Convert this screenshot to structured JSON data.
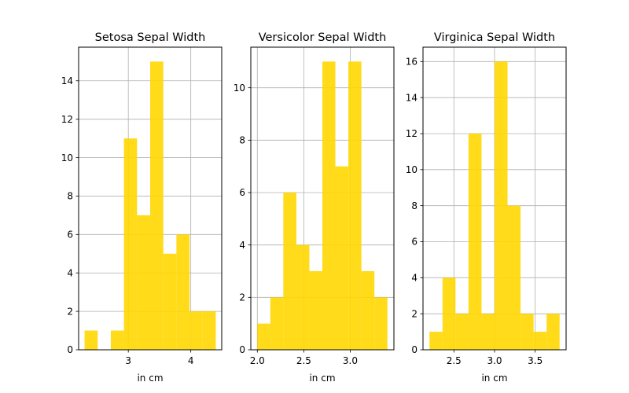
{
  "chart_data": [
    {
      "type": "bar",
      "title": "Setosa Sepal Width",
      "xlabel": "in cm",
      "ylabel": "",
      "color": "#ffd700",
      "grid": true,
      "xlim": [
        2.205,
        4.495
      ],
      "ylim": [
        0,
        15.75
      ],
      "xticks": [
        3,
        4
      ],
      "yticks": [
        0,
        2,
        4,
        6,
        8,
        10,
        12,
        14
      ],
      "bins": [
        {
          "x0": 2.3,
          "x1": 2.51,
          "value": 1
        },
        {
          "x0": 2.51,
          "x1": 2.72,
          "value": 0
        },
        {
          "x0": 2.72,
          "x1": 2.93,
          "value": 1
        },
        {
          "x0": 2.93,
          "x1": 3.14,
          "value": 11
        },
        {
          "x0": 3.14,
          "x1": 3.35,
          "value": 7
        },
        {
          "x0": 3.35,
          "x1": 3.56,
          "value": 15
        },
        {
          "x0": 3.56,
          "x1": 3.77,
          "value": 5
        },
        {
          "x0": 3.77,
          "x1": 3.98,
          "value": 6
        },
        {
          "x0": 3.98,
          "x1": 4.19,
          "value": 2
        },
        {
          "x0": 4.19,
          "x1": 4.4,
          "value": 2
        }
      ]
    },
    {
      "type": "bar",
      "title": "Versicolor Sepal Width",
      "xlabel": "in cm",
      "ylabel": "",
      "color": "#ffd700",
      "grid": true,
      "xlim": [
        1.93,
        3.47
      ],
      "ylim": [
        0,
        11.55
      ],
      "xticks": [
        2.0,
        2.5,
        3.0
      ],
      "yticks": [
        0,
        2,
        4,
        6,
        8,
        10
      ],
      "bins": [
        {
          "x0": 2.0,
          "x1": 2.14,
          "value": 1
        },
        {
          "x0": 2.14,
          "x1": 2.28,
          "value": 2
        },
        {
          "x0": 2.28,
          "x1": 2.42,
          "value": 6
        },
        {
          "x0": 2.42,
          "x1": 2.56,
          "value": 4
        },
        {
          "x0": 2.56,
          "x1": 2.7,
          "value": 3
        },
        {
          "x0": 2.7,
          "x1": 2.84,
          "value": 11
        },
        {
          "x0": 2.84,
          "x1": 2.98,
          "value": 7
        },
        {
          "x0": 2.98,
          "x1": 3.12,
          "value": 11
        },
        {
          "x0": 3.12,
          "x1": 3.26,
          "value": 3
        },
        {
          "x0": 3.26,
          "x1": 3.4,
          "value": 2
        }
      ]
    },
    {
      "type": "bar",
      "title": "Virginica Sepal Width",
      "xlabel": "in cm",
      "ylabel": "",
      "color": "#ffd700",
      "grid": true,
      "xlim": [
        2.12,
        3.88
      ],
      "ylim": [
        0,
        16.8
      ],
      "xticks": [
        2.5,
        3.0,
        3.5
      ],
      "yticks": [
        0,
        2,
        4,
        6,
        8,
        10,
        12,
        14,
        16
      ],
      "bins": [
        {
          "x0": 2.2,
          "x1": 2.36,
          "value": 1
        },
        {
          "x0": 2.36,
          "x1": 2.52,
          "value": 4
        },
        {
          "x0": 2.52,
          "x1": 2.68,
          "value": 2
        },
        {
          "x0": 2.68,
          "x1": 2.84,
          "value": 12
        },
        {
          "x0": 2.84,
          "x1": 3.0,
          "value": 2
        },
        {
          "x0": 3.0,
          "x1": 3.16,
          "value": 16
        },
        {
          "x0": 3.16,
          "x1": 3.32,
          "value": 8
        },
        {
          "x0": 3.32,
          "x1": 3.48,
          "value": 2
        },
        {
          "x0": 3.48,
          "x1": 3.64,
          "value": 1
        },
        {
          "x0": 3.64,
          "x1": 3.8,
          "value": 2
        }
      ]
    }
  ]
}
